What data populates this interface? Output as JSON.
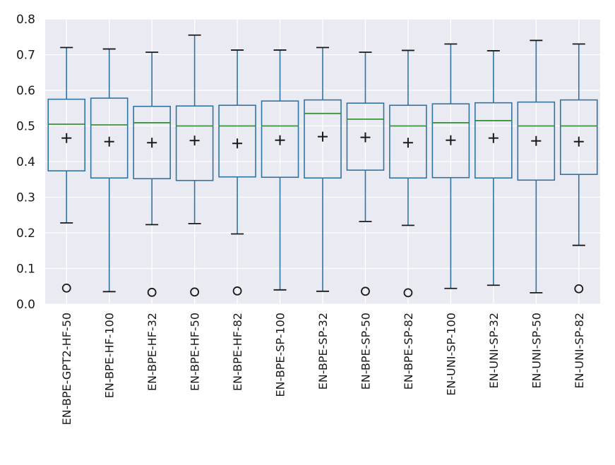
{
  "chart_data": {
    "type": "box",
    "title": "",
    "xlabel": "",
    "ylabel": "",
    "ylim": [
      0.0,
      0.8
    ],
    "yticks": [
      0.0,
      0.1,
      0.2,
      0.3,
      0.4,
      0.5,
      0.6,
      0.7,
      0.8
    ],
    "ytick_labels": [
      "0.0",
      "0.1",
      "0.2",
      "0.3",
      "0.4",
      "0.5",
      "0.6",
      "0.7",
      "0.8"
    ],
    "grid": true,
    "colors": {
      "background": "#eaeaf2",
      "grid": "#ffffff",
      "box": "#3274a1",
      "median": "#3a923a",
      "whisker_cap": "#1a1a1a",
      "mean": "#1a1a1a",
      "outlier": "#1a1a1a"
    },
    "categories": [
      "EN-BPE-GPT2-HF-50",
      "EN-BPE-HF-100",
      "EN-BPE-HF-32",
      "EN-BPE-HF-50",
      "EN-BPE-HF-82",
      "EN-BPE-SP-100",
      "EN-BPE-SP-32",
      "EN-BPE-SP-50",
      "EN-BPE-SP-82",
      "EN-UNI-SP-100",
      "EN-UNI-SP-32",
      "EN-UNI-SP-50",
      "EN-UNI-SP-82"
    ],
    "boxes": [
      {
        "whislo": 0.228,
        "q1": 0.374,
        "median": 0.505,
        "q3": 0.575,
        "whishi": 0.72,
        "mean": 0.466,
        "fliers": [
          0.045
        ]
      },
      {
        "whislo": 0.035,
        "q1": 0.354,
        "median": 0.503,
        "q3": 0.578,
        "whishi": 0.716,
        "mean": 0.456,
        "fliers": []
      },
      {
        "whislo": 0.223,
        "q1": 0.352,
        "median": 0.509,
        "q3": 0.555,
        "whishi": 0.707,
        "mean": 0.453,
        "fliers": [
          0.033
        ]
      },
      {
        "whislo": 0.226,
        "q1": 0.347,
        "median": 0.5,
        "q3": 0.556,
        "whishi": 0.755,
        "mean": 0.459,
        "fliers": [
          0.034
        ]
      },
      {
        "whislo": 0.197,
        "q1": 0.357,
        "median": 0.5,
        "q3": 0.558,
        "whishi": 0.713,
        "mean": 0.451,
        "fliers": [
          0.037
        ]
      },
      {
        "whislo": 0.04,
        "q1": 0.356,
        "median": 0.5,
        "q3": 0.57,
        "whishi": 0.713,
        "mean": 0.46,
        "fliers": []
      },
      {
        "whislo": 0.036,
        "q1": 0.354,
        "median": 0.535,
        "q3": 0.573,
        "whishi": 0.72,
        "mean": 0.47,
        "fliers": []
      },
      {
        "whislo": 0.232,
        "q1": 0.376,
        "median": 0.519,
        "q3": 0.564,
        "whishi": 0.707,
        "mean": 0.468,
        "fliers": [
          0.036
        ]
      },
      {
        "whislo": 0.221,
        "q1": 0.354,
        "median": 0.5,
        "q3": 0.558,
        "whishi": 0.712,
        "mean": 0.453,
        "fliers": [
          0.032
        ]
      },
      {
        "whislo": 0.044,
        "q1": 0.355,
        "median": 0.509,
        "q3": 0.562,
        "whishi": 0.73,
        "mean": 0.46,
        "fliers": []
      },
      {
        "whislo": 0.053,
        "q1": 0.354,
        "median": 0.515,
        "q3": 0.565,
        "whishi": 0.711,
        "mean": 0.466,
        "fliers": []
      },
      {
        "whislo": 0.032,
        "q1": 0.348,
        "median": 0.5,
        "q3": 0.567,
        "whishi": 0.74,
        "mean": 0.458,
        "fliers": []
      },
      {
        "whislo": 0.165,
        "q1": 0.364,
        "median": 0.5,
        "q3": 0.573,
        "whishi": 0.73,
        "mean": 0.456,
        "fliers": [
          0.043
        ]
      }
    ]
  }
}
